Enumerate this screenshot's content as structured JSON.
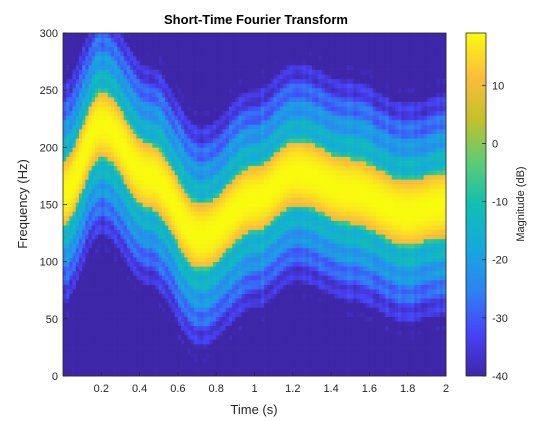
{
  "chart_data": {
    "type": "heatmap",
    "title": "Short-Time Fourier Transform",
    "xlabel": "Time (s)",
    "ylabel": "Frequency (Hz)",
    "xlim": [
      0,
      2
    ],
    "ylim": [
      0,
      300
    ],
    "xticks": [
      0.2,
      0.4,
      0.6,
      0.8,
      1,
      1.2,
      1.4,
      1.6,
      1.8,
      2
    ],
    "xtick_labels": [
      "0.2",
      "0.4",
      "0.6",
      "0.8",
      "1",
      "1.2",
      "1.4",
      "1.6",
      "1.8",
      "2"
    ],
    "yticks": [
      0,
      50,
      100,
      150,
      200,
      250,
      300
    ],
    "ytick_labels": [
      "0",
      "50",
      "100",
      "150",
      "200",
      "250",
      "300"
    ],
    "colormap": "parula",
    "colorbar": {
      "label": "Magnitude (dB)",
      "range": [
        -40,
        19
      ],
      "ticks": [
        -40,
        -30,
        -20,
        -10,
        0,
        10
      ],
      "tick_labels": [
        "-40",
        "-30",
        "-20",
        "-10",
        "0",
        "10"
      ],
      "placement": "right"
    },
    "ridge": {
      "description_points_time_s": [
        0.0,
        0.2,
        0.45,
        0.72,
        1.0,
        1.22,
        1.5,
        1.8,
        2.0
      ],
      "center_frequency_hz": [
        160,
        220,
        175,
        122,
        155,
        178,
        162,
        143,
        150
      ],
      "peak_db": 19
    },
    "time_bins": 120,
    "frequency_bins": 75
  },
  "colors": {
    "background": "#ffffff",
    "axes": "#262626"
  }
}
